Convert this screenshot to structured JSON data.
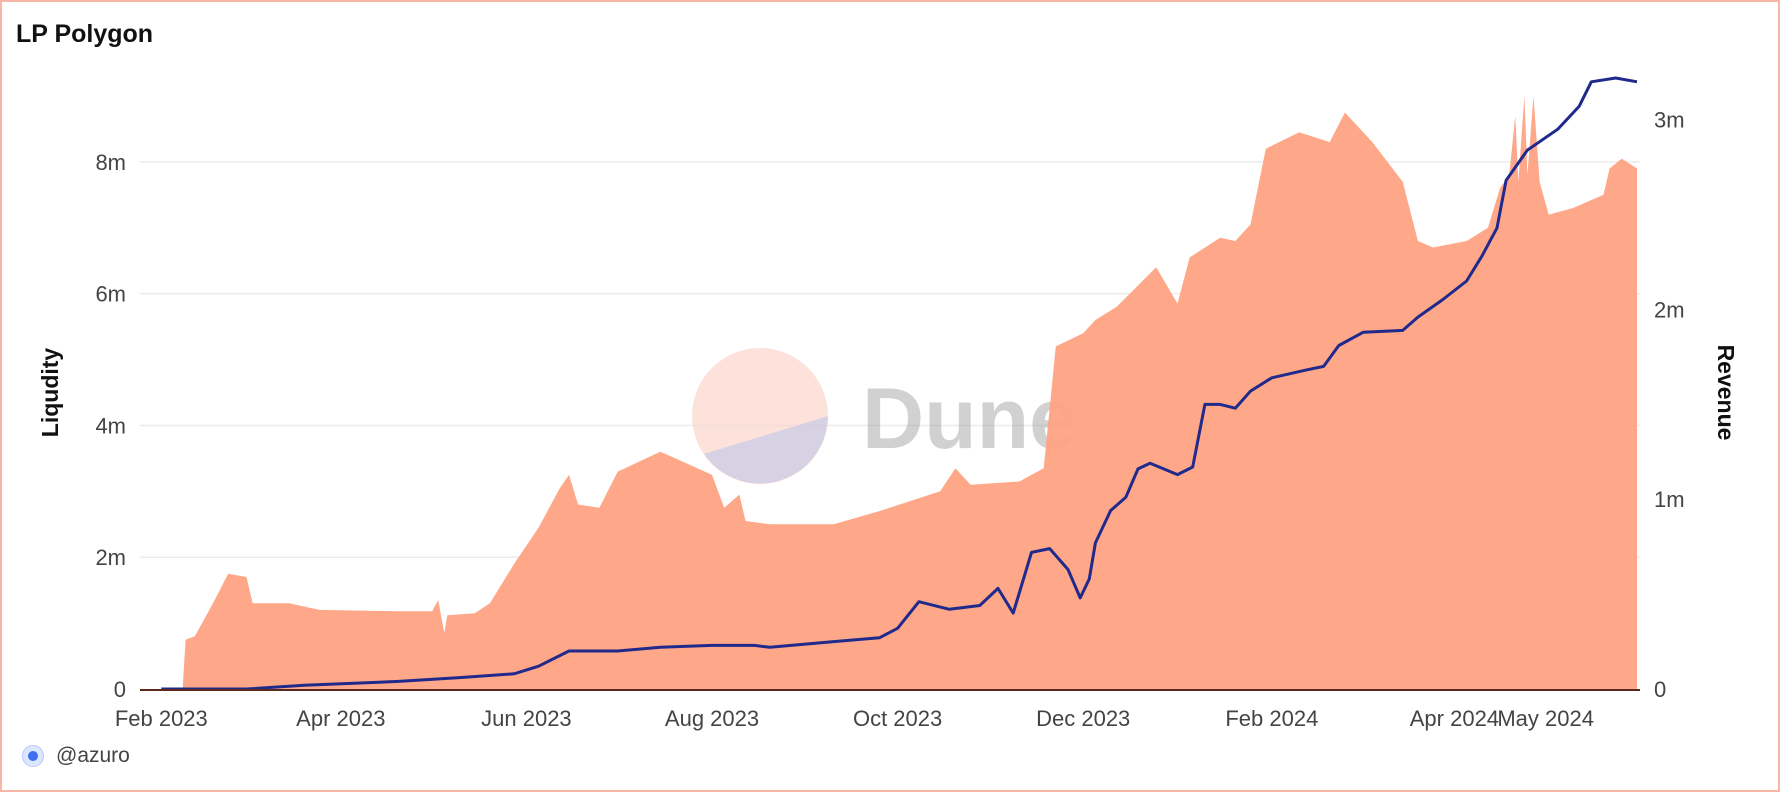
{
  "title": "LP Polygon",
  "author": "@azuro",
  "watermark": "Dune",
  "colors": {
    "liquidity": "#ffa283",
    "revenue": "#1f2a8c",
    "grid": "#ececec",
    "frame": "#f6b7a6"
  },
  "chart_data": {
    "type": "area",
    "grid": true,
    "legend": "none",
    "x_range": [
      "2023-01-25",
      "2024-06-01"
    ],
    "y_left": {
      "label": "Liqudity",
      "range": [
        0,
        9000000
      ],
      "ticks": [
        0,
        2000000,
        4000000,
        6000000,
        8000000
      ],
      "tick_labels": [
        "0",
        "2m",
        "4m",
        "6m",
        "8m"
      ]
    },
    "y_right": {
      "label": "Revenue",
      "range": [
        0,
        3125000
      ],
      "ticks": [
        0,
        1000000,
        2000000,
        3000000
      ],
      "tick_labels": [
        "0",
        "1m",
        "2m",
        "3m"
      ]
    },
    "x_ticks": [
      {
        "date": "2023-02-01",
        "label": "Feb 2023"
      },
      {
        "date": "2023-04-01",
        "label": "Apr 2023"
      },
      {
        "date": "2023-06-01",
        "label": "Jun 2023"
      },
      {
        "date": "2023-08-01",
        "label": "Aug 2023"
      },
      {
        "date": "2023-10-01",
        "label": "Oct 2023"
      },
      {
        "date": "2023-12-01",
        "label": "Dec 2023"
      },
      {
        "date": "2024-02-01",
        "label": "Feb 2024"
      },
      {
        "date": "2024-04-01",
        "label": "Apr 2024"
      },
      {
        "date": "2024-05-01",
        "label": "May 2024"
      }
    ],
    "series": [
      {
        "axis": "left",
        "kind": "area",
        "points": [
          [
            "2023-02-01",
            0
          ],
          [
            "2023-02-08",
            0
          ],
          [
            "2023-02-09",
            750000
          ],
          [
            "2023-02-12",
            800000
          ],
          [
            "2023-02-18",
            1300000
          ],
          [
            "2023-02-23",
            1750000
          ],
          [
            "2023-03-01",
            1700000
          ],
          [
            "2023-03-03",
            1300000
          ],
          [
            "2023-03-15",
            1300000
          ],
          [
            "2023-03-25",
            1200000
          ],
          [
            "2023-04-20",
            1180000
          ],
          [
            "2023-05-01",
            1180000
          ],
          [
            "2023-05-03",
            1350000
          ],
          [
            "2023-05-05",
            850000
          ],
          [
            "2023-05-06",
            1120000
          ],
          [
            "2023-05-15",
            1150000
          ],
          [
            "2023-05-20",
            1300000
          ],
          [
            "2023-05-28",
            1900000
          ],
          [
            "2023-06-05",
            2450000
          ],
          [
            "2023-06-12",
            3050000
          ],
          [
            "2023-06-15",
            3250000
          ],
          [
            "2023-06-18",
            2800000
          ],
          [
            "2023-06-25",
            2750000
          ],
          [
            "2023-07-01",
            3300000
          ],
          [
            "2023-07-15",
            3600000
          ],
          [
            "2023-07-20",
            3500000
          ],
          [
            "2023-08-01",
            3250000
          ],
          [
            "2023-08-05",
            2750000
          ],
          [
            "2023-08-10",
            2950000
          ],
          [
            "2023-08-12",
            2550000
          ],
          [
            "2023-08-20",
            2500000
          ],
          [
            "2023-09-10",
            2500000
          ],
          [
            "2023-09-25",
            2700000
          ],
          [
            "2023-10-15",
            3000000
          ],
          [
            "2023-10-20",
            3350000
          ],
          [
            "2023-10-25",
            3100000
          ],
          [
            "2023-11-10",
            3150000
          ],
          [
            "2023-11-18",
            3350000
          ],
          [
            "2023-11-22",
            5200000
          ],
          [
            "2023-12-01",
            5400000
          ],
          [
            "2023-12-05",
            5600000
          ],
          [
            "2023-12-12",
            5800000
          ],
          [
            "2023-12-25",
            6400000
          ],
          [
            "2024-01-01",
            5850000
          ],
          [
            "2024-01-05",
            6550000
          ],
          [
            "2024-01-15",
            6850000
          ],
          [
            "2024-01-20",
            6800000
          ],
          [
            "2024-01-25",
            7050000
          ],
          [
            "2024-01-30",
            8200000
          ],
          [
            "2024-02-10",
            8450000
          ],
          [
            "2024-02-20",
            8300000
          ],
          [
            "2024-02-25",
            8750000
          ],
          [
            "2024-03-05",
            8300000
          ],
          [
            "2024-03-15",
            7700000
          ],
          [
            "2024-03-20",
            6800000
          ],
          [
            "2024-03-25",
            6700000
          ],
          [
            "2024-04-05",
            6800000
          ],
          [
            "2024-04-12",
            7000000
          ],
          [
            "2024-04-16",
            7600000
          ],
          [
            "2024-04-19",
            7800000
          ],
          [
            "2024-04-21",
            8700000
          ],
          [
            "2024-04-22",
            7700000
          ],
          [
            "2024-04-24",
            9000000
          ],
          [
            "2024-04-25",
            7800000
          ],
          [
            "2024-04-27",
            9000000
          ],
          [
            "2024-04-29",
            7700000
          ],
          [
            "2024-05-02",
            7200000
          ],
          [
            "2024-05-10",
            7300000
          ],
          [
            "2024-05-20",
            7500000
          ],
          [
            "2024-05-22",
            7900000
          ],
          [
            "2024-05-26",
            8050000
          ],
          [
            "2024-05-31",
            7900000
          ]
        ]
      },
      {
        "axis": "right",
        "kind": "line",
        "points": [
          [
            "2023-02-01",
            0
          ],
          [
            "2023-02-20",
            0
          ],
          [
            "2023-03-01",
            0
          ],
          [
            "2023-03-20",
            20000
          ],
          [
            "2023-04-20",
            40000
          ],
          [
            "2023-05-10",
            60000
          ],
          [
            "2023-05-28",
            80000
          ],
          [
            "2023-06-05",
            120000
          ],
          [
            "2023-06-15",
            200000
          ],
          [
            "2023-07-01",
            200000
          ],
          [
            "2023-07-15",
            220000
          ],
          [
            "2023-08-01",
            230000
          ],
          [
            "2023-08-15",
            230000
          ],
          [
            "2023-08-20",
            220000
          ],
          [
            "2023-09-10",
            250000
          ],
          [
            "2023-09-25",
            270000
          ],
          [
            "2023-10-01",
            320000
          ],
          [
            "2023-10-08",
            460000
          ],
          [
            "2023-10-18",
            420000
          ],
          [
            "2023-10-28",
            440000
          ],
          [
            "2023-11-03",
            530000
          ],
          [
            "2023-11-08",
            400000
          ],
          [
            "2023-11-14",
            720000
          ],
          [
            "2023-11-20",
            740000
          ],
          [
            "2023-11-26",
            630000
          ],
          [
            "2023-11-30",
            480000
          ],
          [
            "2023-12-03",
            580000
          ],
          [
            "2023-12-05",
            770000
          ],
          [
            "2023-12-10",
            940000
          ],
          [
            "2023-12-15",
            1010000
          ],
          [
            "2023-12-19",
            1160000
          ],
          [
            "2023-12-23",
            1190000
          ],
          [
            "2024-01-01",
            1130000
          ],
          [
            "2024-01-06",
            1170000
          ],
          [
            "2024-01-10",
            1500000
          ],
          [
            "2024-01-15",
            1500000
          ],
          [
            "2024-01-20",
            1480000
          ],
          [
            "2024-01-25",
            1570000
          ],
          [
            "2024-02-01",
            1640000
          ],
          [
            "2024-02-12",
            1680000
          ],
          [
            "2024-02-18",
            1700000
          ],
          [
            "2024-02-23",
            1810000
          ],
          [
            "2024-03-02",
            1880000
          ],
          [
            "2024-03-15",
            1890000
          ],
          [
            "2024-03-20",
            1960000
          ],
          [
            "2024-03-28",
            2050000
          ],
          [
            "2024-04-05",
            2150000
          ],
          [
            "2024-04-10",
            2280000
          ],
          [
            "2024-04-15",
            2430000
          ],
          [
            "2024-04-18",
            2680000
          ],
          [
            "2024-04-25",
            2840000
          ],
          [
            "2024-05-05",
            2950000
          ],
          [
            "2024-05-12",
            3070000
          ],
          [
            "2024-05-16",
            3200000
          ],
          [
            "2024-05-24",
            3220000
          ],
          [
            "2024-05-31",
            3200000
          ]
        ]
      }
    ]
  }
}
